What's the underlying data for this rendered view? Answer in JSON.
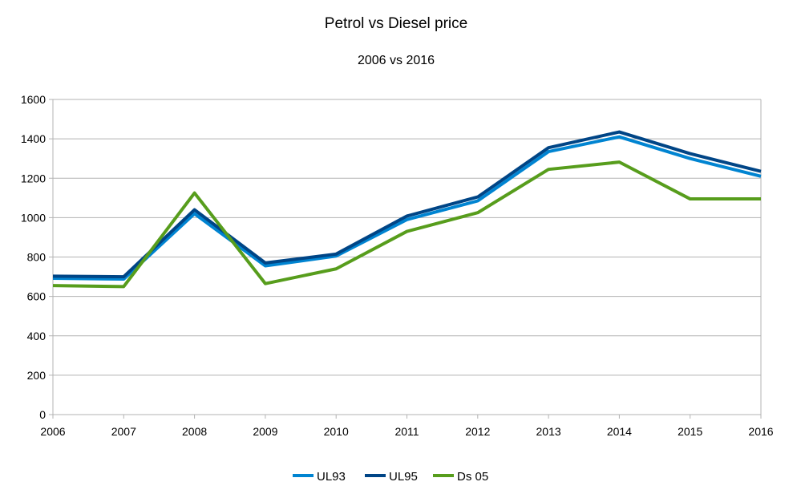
{
  "chart_data": {
    "type": "line",
    "title": "Petrol vs Diesel price",
    "subtitle": "2006 vs 2016",
    "xlabel": "",
    "ylabel": "",
    "categories": [
      "2006",
      "2007",
      "2008",
      "2009",
      "2010",
      "2011",
      "2012",
      "2013",
      "2014",
      "2015",
      "2016"
    ],
    "ylim": [
      0,
      1600
    ],
    "yticks": [
      0,
      200,
      400,
      600,
      800,
      1000,
      1200,
      1400,
      1600
    ],
    "grid": true,
    "legend_position": "bottom",
    "series": [
      {
        "name": "UL93",
        "color": "#0084d1",
        "values": [
          692,
          688,
          1020,
          755,
          805,
          990,
          1085,
          1335,
          1410,
          1300,
          1210
        ]
      },
      {
        "name": "UL95",
        "color": "#004586",
        "values": [
          703,
          700,
          1040,
          770,
          815,
          1008,
          1105,
          1355,
          1435,
          1325,
          1235
        ]
      },
      {
        "name": "Ds 05",
        "color": "#579d1c",
        "values": [
          655,
          650,
          1125,
          665,
          740,
          930,
          1025,
          1245,
          1282,
          1095,
          1095
        ]
      }
    ]
  }
}
